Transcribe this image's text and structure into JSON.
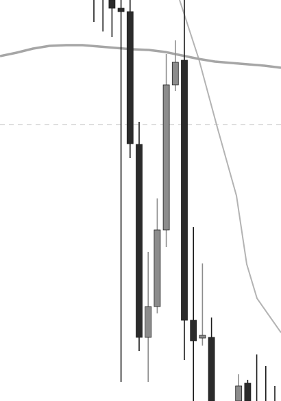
{
  "chart_data": {
    "type": "candlestick",
    "title": "",
    "xlabel": "",
    "ylabel": "",
    "grid": false,
    "legend": "none",
    "ylim": [
      0,
      586
    ],
    "colors": {
      "bearish": "#2b2b2b",
      "bullish": "#8c8c8c",
      "wick": "#1a1a1a",
      "moving_average": "#a6a6a6",
      "trend_line": "#b3b3b3",
      "reference_line": "#cccccc"
    },
    "candles": [
      {
        "open": 586,
        "close": 586,
        "high": 586,
        "low": 554,
        "dir": "flat"
      },
      {
        "open": 586,
        "close": 586,
        "high": 586,
        "low": 540,
        "dir": "flat"
      },
      {
        "open": 586,
        "close": 574,
        "high": 586,
        "low": 532,
        "dir": "down"
      },
      {
        "open": 574,
        "close": 569,
        "high": 586,
        "low": 28,
        "dir": "down"
      },
      {
        "open": 569,
        "close": 376,
        "high": 586,
        "low": 355,
        "dir": "down"
      },
      {
        "open": 375,
        "close": 93,
        "high": 408,
        "low": 73,
        "dir": "down"
      },
      {
        "open": 93,
        "close": 138,
        "high": 218,
        "low": 28,
        "dir": "up"
      },
      {
        "open": 138,
        "close": 250,
        "high": 296,
        "low": 128,
        "dir": "up"
      },
      {
        "open": 250,
        "close": 462,
        "high": 507,
        "low": 225,
        "dir": "up"
      },
      {
        "open": 462,
        "close": 495,
        "high": 527,
        "low": 453,
        "dir": "up"
      },
      {
        "open": 498,
        "close": 118,
        "high": 586,
        "low": 60,
        "dir": "down"
      },
      {
        "open": 118,
        "close": 88,
        "high": 254,
        "low": 0,
        "dir": "down"
      },
      {
        "open": 92,
        "close": 96,
        "high": 201,
        "low": 81,
        "dir": "up"
      },
      {
        "open": 93,
        "close": 0,
        "high": 122,
        "low": 0,
        "dir": "down"
      },
      {
        "open": 0,
        "close": 0,
        "high": 0,
        "low": 0,
        "dir": "flat"
      },
      {
        "open": 0,
        "close": 0,
        "high": 0,
        "low": 0,
        "dir": "flat"
      },
      {
        "open": 0,
        "close": 22,
        "high": 39,
        "low": 0,
        "dir": "up"
      },
      {
        "open": 26,
        "close": 0,
        "high": 31,
        "low": 0,
        "dir": "down"
      },
      {
        "open": 0,
        "close": 0,
        "high": 68,
        "low": 0,
        "dir": "flat"
      },
      {
        "open": 0,
        "close": 0,
        "high": 51,
        "low": 0,
        "dir": "flat"
      },
      {
        "open": 0,
        "close": 0,
        "high": 22,
        "low": 0,
        "dir": "flat"
      }
    ],
    "moving_average": [
      504,
      509,
      515,
      519,
      520,
      520,
      518,
      516,
      514,
      513,
      510,
      505,
      500,
      496,
      494,
      492,
      490,
      487
    ],
    "trend_line": [
      586,
      500,
      400,
      300,
      200,
      150,
      100
    ],
    "reference_level": 404
  }
}
